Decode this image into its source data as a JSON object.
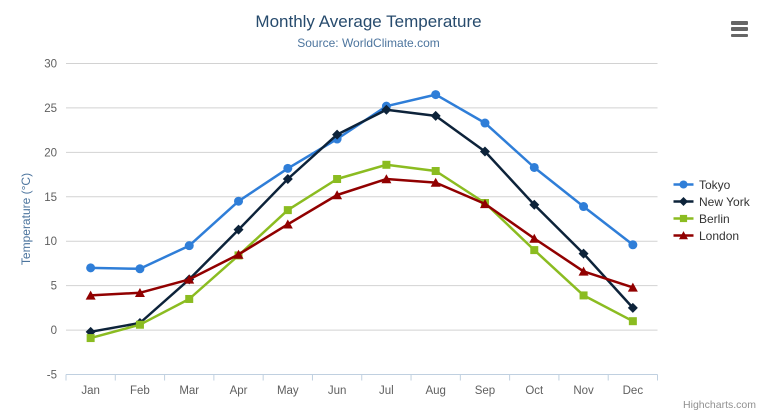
{
  "credits": "Highcharts.com",
  "chart_data": {
    "type": "line",
    "title": "Monthly Average Temperature",
    "subtitle": "Source: WorldClimate.com",
    "xlabel": "",
    "ylabel": "Temperature (°C)",
    "ylim": [
      -5,
      30
    ],
    "ytick_step": 5,
    "grid": true,
    "legend_position": "right",
    "categories": [
      "Jan",
      "Feb",
      "Mar",
      "Apr",
      "May",
      "Jun",
      "Jul",
      "Aug",
      "Sep",
      "Oct",
      "Nov",
      "Dec"
    ],
    "series": [
      {
        "name": "Tokyo",
        "color": "#2f7ed8",
        "marker": "circle",
        "values": [
          7.0,
          6.9,
          9.5,
          14.5,
          18.2,
          21.5,
          25.2,
          26.5,
          23.3,
          18.3,
          13.9,
          9.6
        ]
      },
      {
        "name": "New York",
        "color": "#0d233a",
        "marker": "diamond",
        "values": [
          -0.2,
          0.8,
          5.7,
          11.3,
          17.0,
          22.0,
          24.8,
          24.1,
          20.1,
          14.1,
          8.6,
          2.5
        ]
      },
      {
        "name": "Berlin",
        "color": "#8bbc21",
        "marker": "square",
        "values": [
          -0.9,
          0.6,
          3.5,
          8.4,
          13.5,
          17.0,
          18.6,
          17.9,
          14.3,
          9.0,
          3.9,
          1.0
        ]
      },
      {
        "name": "London",
        "color": "#910000",
        "marker": "triangle",
        "values": [
          3.9,
          4.2,
          5.7,
          8.5,
          11.9,
          15.2,
          17.0,
          16.6,
          14.2,
          10.3,
          6.6,
          4.8
        ]
      }
    ],
    "theme": {
      "title_color": "#274b6d",
      "subtitle_color": "#4d759e",
      "axis_label_color": "#606060",
      "axis_title_color": "#4d759e",
      "grid_color": "#d2d2d2",
      "axis_line_color": "#c0d0e0",
      "legend_text_color": "#333333",
      "credits_color": "#909090",
      "menu_icon_color": "#666666",
      "background": "#ffffff"
    }
  }
}
